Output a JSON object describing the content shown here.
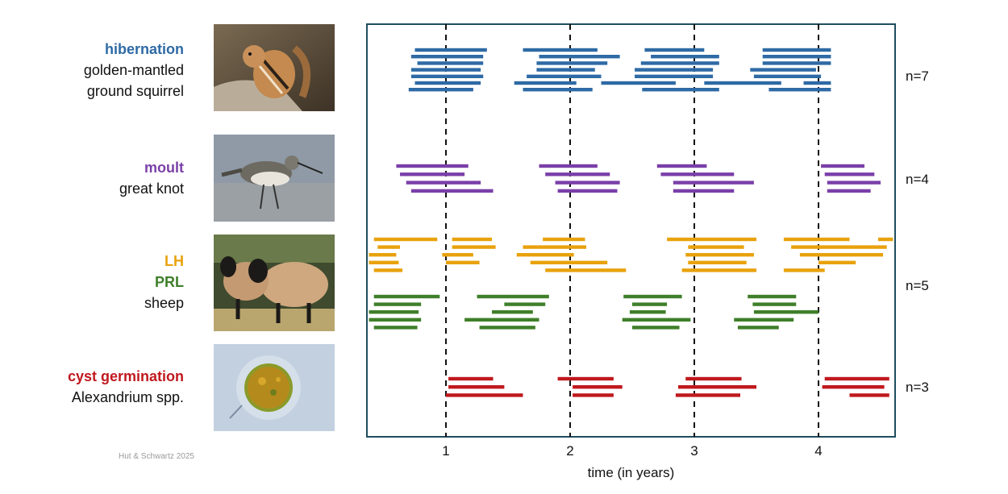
{
  "credit": "Hut & Schwartz 2025",
  "panels": [
    {
      "process": "hibernation",
      "species": [
        "golden-mantled",
        "ground squirrel"
      ],
      "color": "#2e6aa5",
      "n": "n=7"
    },
    {
      "process": "moult",
      "species": [
        "great knot"
      ],
      "color": "#7a3fa8",
      "n": "n=4"
    },
    {
      "process": "LH",
      "process2": "PRL",
      "species": [
        "sheep"
      ],
      "color": "#e8a20c",
      "color2": "#3f7f2a",
      "n": "n=5"
    },
    {
      "process": "cyst germination",
      "species": [
        "Alexandrium spp."
      ],
      "color": "#c0191e",
      "n": "n=3"
    }
  ],
  "chart_data": {
    "type": "timeline",
    "xlabel": "time (in years)",
    "xticks": [
      1,
      2,
      3,
      4
    ],
    "xlim": [
      0.35,
      4.6
    ],
    "series": [
      {
        "name": "hibernation",
        "color": "#2e6aa5",
        "intervals": [
          [
            0.75,
            1.33
          ],
          [
            1.62,
            2.22
          ],
          [
            2.6,
            3.08
          ],
          [
            3.55,
            4.1
          ],
          [
            0.72,
            1.3
          ],
          [
            1.75,
            2.4
          ],
          [
            2.65,
            3.2
          ],
          [
            3.55,
            4.1
          ],
          [
            0.77,
            1.3
          ],
          [
            1.73,
            2.3
          ],
          [
            2.57,
            3.2
          ],
          [
            3.55,
            4.1
          ],
          [
            0.72,
            1.28
          ],
          [
            1.73,
            2.2
          ],
          [
            2.52,
            3.15
          ],
          [
            3.45,
            3.98
          ],
          [
            0.72,
            1.3
          ],
          [
            1.65,
            2.25
          ],
          [
            2.52,
            3.15
          ],
          [
            3.48,
            4.02
          ],
          [
            0.75,
            1.28
          ],
          [
            1.55,
            2.05
          ],
          [
            2.25,
            2.85
          ],
          [
            3.08,
            3.7
          ],
          [
            3.88,
            4.1
          ],
          [
            0.7,
            1.22
          ],
          [
            1.62,
            2.18
          ],
          [
            2.58,
            3.2
          ],
          [
            3.6,
            4.1
          ]
        ]
      },
      {
        "name": "moult",
        "color": "#7a3fa8",
        "intervals": [
          [
            0.6,
            1.18
          ],
          [
            1.75,
            2.22
          ],
          [
            2.7,
            3.1
          ],
          [
            4.02,
            4.37
          ],
          [
            0.63,
            1.15
          ],
          [
            1.8,
            2.32
          ],
          [
            2.73,
            3.32
          ],
          [
            4.05,
            4.45
          ],
          [
            0.68,
            1.28
          ],
          [
            1.88,
            2.4
          ],
          [
            2.83,
            3.48
          ],
          [
            4.07,
            4.5
          ],
          [
            0.72,
            1.38
          ],
          [
            1.9,
            2.38
          ],
          [
            2.83,
            3.32
          ],
          [
            4.07,
            4.42
          ]
        ]
      },
      {
        "name": "LH",
        "color": "#e8a20c",
        "intervals": [
          [
            0.42,
            0.93
          ],
          [
            1.05,
            1.37
          ],
          [
            1.78,
            2.12
          ],
          [
            2.78,
            3.5
          ],
          [
            3.72,
            4.25
          ],
          [
            4.48,
            4.6
          ],
          [
            0.45,
            0.63
          ],
          [
            1.05,
            1.4
          ],
          [
            1.62,
            2.13
          ],
          [
            2.95,
            3.4
          ],
          [
            3.78,
            4.55
          ],
          [
            0.38,
            0.6
          ],
          [
            0.97,
            1.22
          ],
          [
            1.57,
            2.03
          ],
          [
            2.93,
            3.48
          ],
          [
            3.85,
            4.52
          ],
          [
            0.38,
            0.62
          ],
          [
            1.0,
            1.27
          ],
          [
            1.68,
            2.3
          ],
          [
            2.95,
            3.42
          ],
          [
            4.0,
            4.3
          ],
          [
            0.42,
            0.65
          ],
          [
            1.8,
            2.45
          ],
          [
            2.9,
            3.5
          ],
          [
            3.72,
            4.05
          ]
        ]
      },
      {
        "name": "PRL",
        "color": "#3f7f2a",
        "intervals": [
          [
            0.42,
            0.95
          ],
          [
            1.25,
            1.83
          ],
          [
            2.43,
            2.9
          ],
          [
            3.43,
            3.82
          ],
          [
            0.42,
            0.8
          ],
          [
            1.47,
            1.8
          ],
          [
            2.5,
            2.78
          ],
          [
            3.47,
            3.82
          ],
          [
            0.38,
            0.78
          ],
          [
            1.37,
            1.7
          ],
          [
            2.48,
            2.77
          ],
          [
            3.48,
            4.0
          ],
          [
            0.38,
            0.8
          ],
          [
            1.15,
            1.75
          ],
          [
            2.42,
            2.97
          ],
          [
            3.32,
            3.8
          ],
          [
            0.42,
            0.77
          ],
          [
            1.27,
            1.72
          ],
          [
            2.5,
            2.88
          ],
          [
            3.35,
            3.68
          ]
        ]
      },
      {
        "name": "cyst germination",
        "color": "#c0191e",
        "intervals": [
          [
            1.02,
            1.38
          ],
          [
            1.9,
            2.35
          ],
          [
            2.93,
            3.38
          ],
          [
            4.05,
            4.57
          ],
          [
            1.02,
            1.47
          ],
          [
            2.02,
            2.42
          ],
          [
            2.87,
            3.5
          ],
          [
            4.03,
            4.53
          ],
          [
            1.0,
            1.62
          ],
          [
            2.02,
            2.35
          ],
          [
            2.85,
            3.37
          ],
          [
            4.25,
            4.57
          ]
        ]
      }
    ]
  }
}
